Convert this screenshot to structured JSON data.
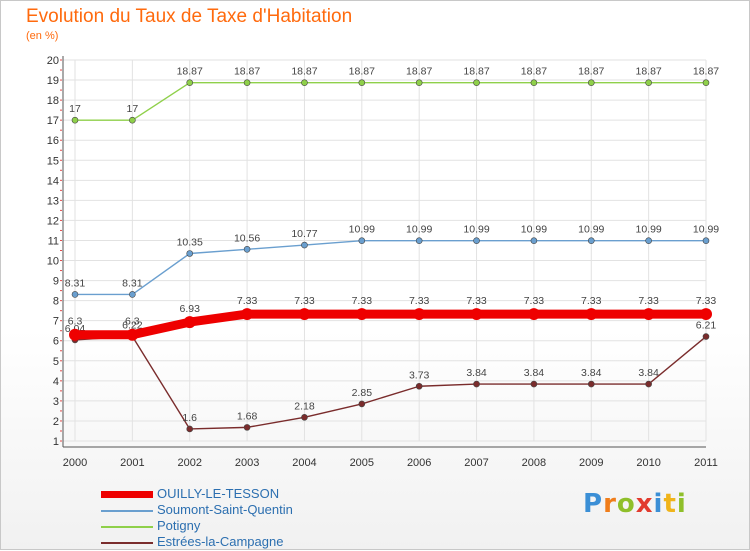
{
  "title": "Evolution du Taux de Taxe d'Habitation",
  "subtitle": "(en %)",
  "logo": {
    "letters": [
      "P",
      "r",
      "o",
      "x",
      "i",
      "t",
      "i"
    ],
    "colors": [
      "#3b8fd6",
      "#f07d1a",
      "#8fbf2a",
      "#e23b2e",
      "#3b8fd6",
      "#f0b41a",
      "#8fbf2a"
    ]
  },
  "chart_data": {
    "type": "line",
    "x": [
      "2000",
      "2001",
      "2002",
      "2003",
      "2004",
      "2005",
      "2006",
      "2007",
      "2008",
      "2009",
      "2010",
      "2011"
    ],
    "ylim": [
      1,
      20
    ],
    "yticks": [
      1,
      2,
      3,
      4,
      5,
      6,
      7,
      8,
      9,
      10,
      11,
      12,
      13,
      14,
      15,
      16,
      17,
      18,
      19,
      20
    ],
    "grid": true,
    "legend": "bottom-left",
    "series": [
      {
        "name": "Potigny",
        "color": "#8fd04a",
        "values": [
          17,
          17,
          18.87,
          18.87,
          18.87,
          18.87,
          18.87,
          18.87,
          18.87,
          18.87,
          18.87,
          18.87
        ],
        "labels": [
          "17",
          "17",
          "18.87",
          "18.87",
          "18.87",
          "18.87",
          "18.87",
          "18.87",
          "18.87",
          "18.87",
          "18.87",
          "18.87"
        ]
      },
      {
        "name": "Soumont-Saint-Quentin",
        "color": "#6a9fcf",
        "values": [
          8.31,
          8.31,
          10.35,
          10.56,
          10.77,
          10.99,
          10.99,
          10.99,
          10.99,
          10.99,
          10.99,
          10.99
        ],
        "labels": [
          "8.31",
          "8.31",
          "10.35",
          "10.56",
          "10.77",
          "10.99",
          "10.99",
          "10.99",
          "10.99",
          "10.99",
          "10.99",
          "10.99"
        ]
      },
      {
        "name": "Estrées-la-Campagne",
        "color": "#7a2c2c",
        "values": [
          6.04,
          6.22,
          1.6,
          1.68,
          2.18,
          2.85,
          3.73,
          3.84,
          3.84,
          3.84,
          3.84,
          6.21
        ],
        "labels": [
          "6.04",
          "6.22",
          "1.6",
          "1.68",
          "2.18",
          "2.85",
          "3.73",
          "3.84",
          "3.84",
          "3.84",
          "3.84",
          "6.21"
        ]
      },
      {
        "name": "OUILLY-LE-TESSON",
        "color": "#ee0000",
        "values": [
          6.3,
          6.3,
          6.93,
          7.33,
          7.33,
          7.33,
          7.33,
          7.33,
          7.33,
          7.33,
          7.33,
          7.33
        ],
        "labels": [
          "6.3",
          "6.3",
          "6.93",
          "7.33",
          "7.33",
          "7.33",
          "7.33",
          "7.33",
          "7.33",
          "7.33",
          "7.33",
          "7.33"
        ]
      }
    ],
    "legend_entries": [
      {
        "name": "OUILLY-LE-TESSON",
        "color": "#ee0000"
      },
      {
        "name": "Soumont-Saint-Quentin",
        "color": "#6a9fcf"
      },
      {
        "name": "Potigny",
        "color": "#8fd04a"
      },
      {
        "name": "Estrées-la-Campagne",
        "color": "#7a2c2c"
      }
    ]
  }
}
